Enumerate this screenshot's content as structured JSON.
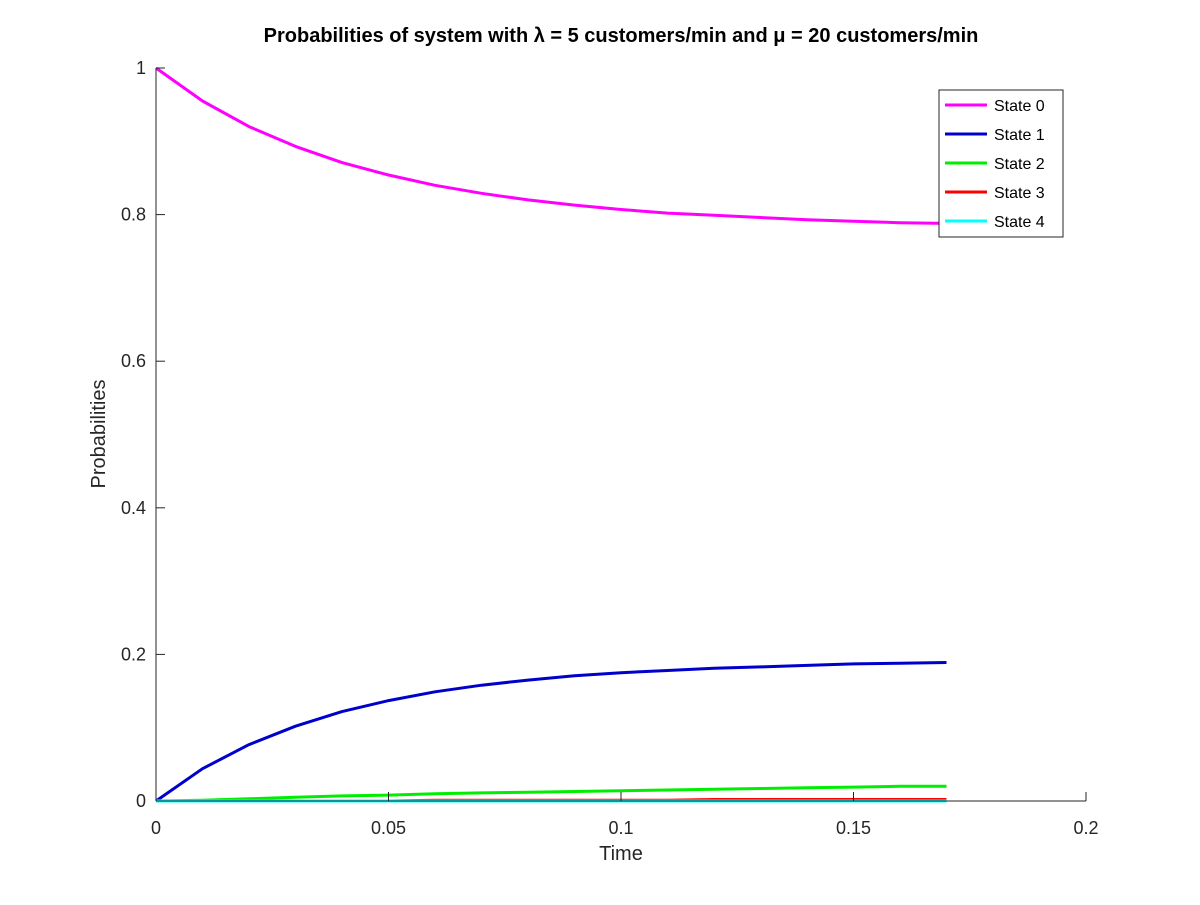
{
  "chart_data": {
    "type": "line",
    "title": "Probabilities of system with λ = 5 customers/min and μ = 20 customers/min",
    "xlabel": "Time",
    "ylabel": "Probabilities",
    "xlim": [
      0,
      0.2
    ],
    "ylim": [
      0,
      1
    ],
    "xticks": [
      0,
      0.05,
      0.1,
      0.15,
      0.2
    ],
    "xtick_labels": [
      "0",
      "0.05",
      "0.1",
      "0.15",
      "0.2"
    ],
    "yticks": [
      0,
      0.2,
      0.4,
      0.6,
      0.8,
      1
    ],
    "ytick_labels": [
      "0",
      "0.2",
      "0.4",
      "0.6",
      "0.8",
      "1"
    ],
    "grid": false,
    "legend_position": "top-right",
    "x": [
      0,
      0.01,
      0.02,
      0.03,
      0.04,
      0.05,
      0.06,
      0.07,
      0.08,
      0.09,
      0.1,
      0.11,
      0.12,
      0.13,
      0.14,
      0.15,
      0.16,
      0.17
    ],
    "series": [
      {
        "name": "State 0",
        "color": "#ff00ff",
        "values": [
          1.0,
          0.955,
          0.92,
          0.893,
          0.871,
          0.854,
          0.84,
          0.829,
          0.82,
          0.813,
          0.807,
          0.802,
          0.799,
          0.796,
          0.793,
          0.791,
          0.789,
          0.788
        ]
      },
      {
        "name": "State 1",
        "color": "#0000cc",
        "values": [
          0.0,
          0.044,
          0.077,
          0.102,
          0.122,
          0.137,
          0.149,
          0.158,
          0.165,
          0.171,
          0.175,
          0.178,
          0.181,
          0.183,
          0.185,
          0.187,
          0.188,
          0.189
        ]
      },
      {
        "name": "State 2",
        "color": "#00ee00",
        "values": [
          0.0,
          0.001,
          0.003,
          0.005,
          0.007,
          0.008,
          0.01,
          0.011,
          0.012,
          0.013,
          0.014,
          0.015,
          0.016,
          0.017,
          0.018,
          0.019,
          0.02,
          0.02
        ]
      },
      {
        "name": "State 3",
        "color": "#ff0000",
        "values": [
          0.0,
          0.0,
          0.0,
          0.0,
          0.0,
          0.0,
          0.001,
          0.001,
          0.001,
          0.001,
          0.001,
          0.001,
          0.002,
          0.002,
          0.002,
          0.002,
          0.002,
          0.002
        ]
      },
      {
        "name": "State 4",
        "color": "#00ffff",
        "values": [
          0.0,
          0.0,
          0.0,
          0.0,
          0.0,
          0.0,
          0.0,
          0.0,
          0.0,
          0.0,
          0.0,
          0.0,
          0.0,
          0.0,
          0.0,
          0.0,
          0.0,
          0.0
        ]
      }
    ]
  }
}
